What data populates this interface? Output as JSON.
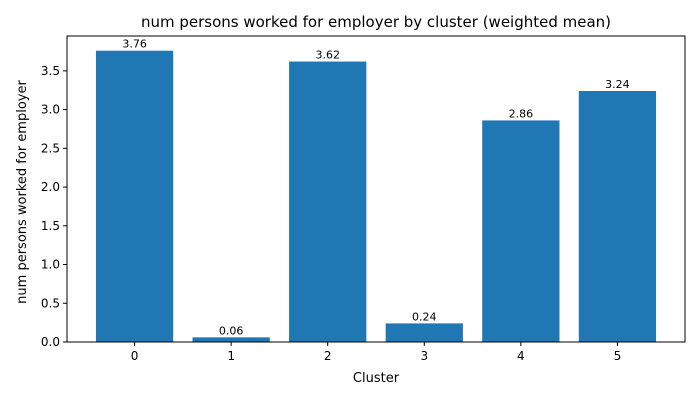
{
  "chart_data": {
    "type": "bar",
    "title": "num persons worked for employer by cluster (weighted mean)",
    "xlabel": "Cluster",
    "ylabel": "num persons worked for employer",
    "categories": [
      "0",
      "1",
      "2",
      "3",
      "4",
      "5"
    ],
    "values": [
      3.76,
      0.06,
      3.62,
      0.24,
      2.86,
      3.24
    ],
    "data_labels": [
      "3.76",
      "0.06",
      "3.62",
      "0.24",
      "2.86",
      "3.24"
    ],
    "yticks": [
      0.0,
      0.5,
      1.0,
      1.5,
      2.0,
      2.5,
      3.0,
      3.5
    ],
    "ytick_labels": [
      "0.0",
      "0.5",
      "1.0",
      "1.5",
      "2.0",
      "2.5",
      "3.0",
      "3.5"
    ],
    "ylim": [
      0,
      3.95
    ],
    "grid": false,
    "bar_color": "#1f77b4"
  }
}
